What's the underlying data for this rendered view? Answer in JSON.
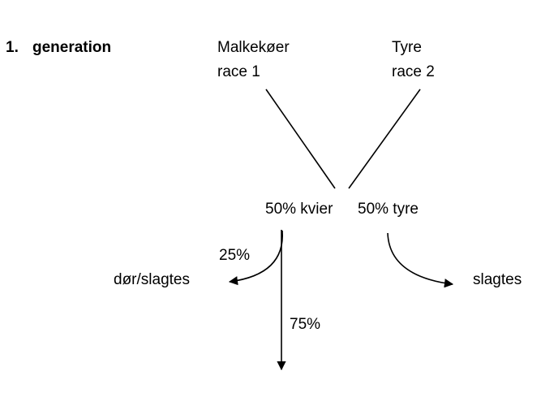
{
  "heading": {
    "number": "1.",
    "title": "generation"
  },
  "parents": [
    {
      "line1": "Malkekøer",
      "line2": "race 1"
    },
    {
      "line1": "Tyre",
      "line2": "race 2"
    }
  ],
  "offspring": {
    "female": "50% kvier",
    "male": "50% tyre"
  },
  "outcomes": {
    "female_culled_pct": "25%",
    "female_culled_label": "dør/slagtes",
    "female_kept_pct": "75%",
    "male_label": "slagtes"
  }
}
